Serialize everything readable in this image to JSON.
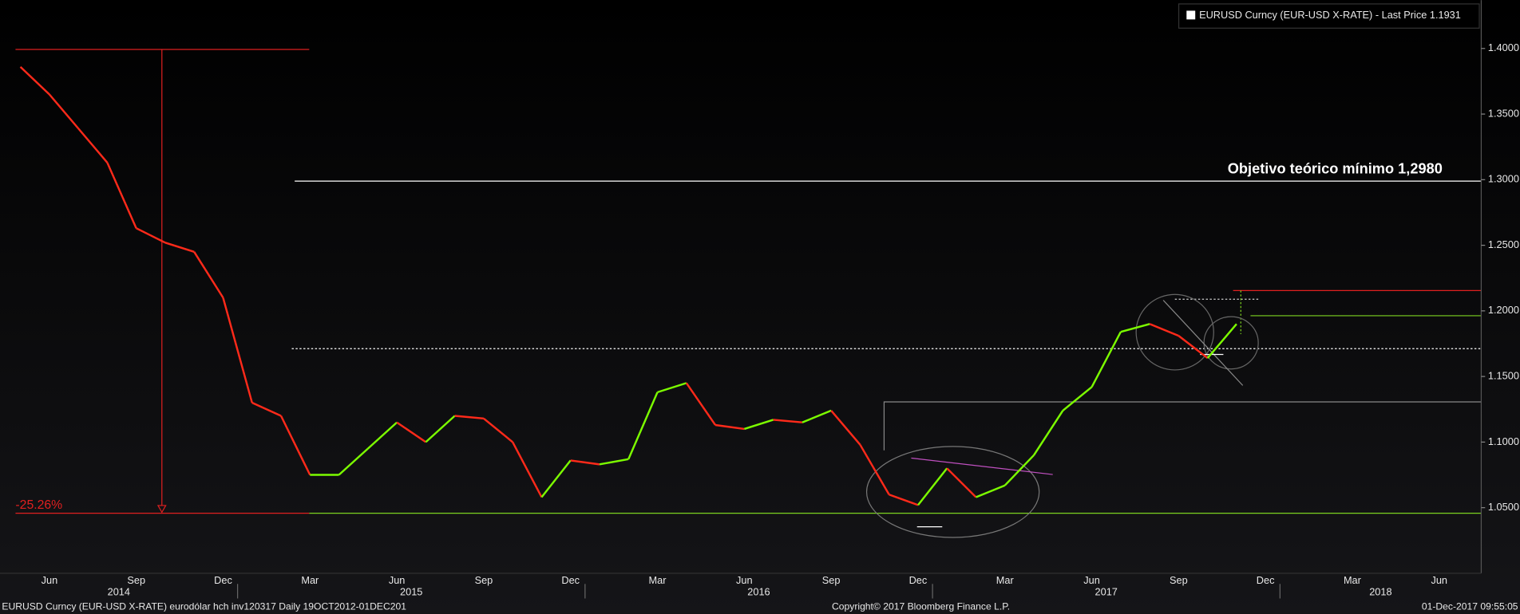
{
  "chart_data": {
    "type": "line",
    "title": "EURUSD Curncy (EUR-USD X-RATE) - Last Price 1.1931",
    "annotations": {
      "target": "Objetivo teórico mínimo 1,2980",
      "drop": "-25.26%"
    },
    "footer": {
      "left": "EURUSD Curncy (EUR-USD X-RATE) eurodólar hch inv120317  Daily 19OCT2012-01DEC201",
      "center": "Copyright© 2017 Bloomberg Finance L.P.",
      "right": "01-Dec-2017 09:55:05"
    },
    "x": [
      "2014-05",
      "2014-06",
      "2014-07",
      "2014-08",
      "2014-09",
      "2014-10",
      "2014-11",
      "2014-12",
      "2015-01",
      "2015-02",
      "2015-03",
      "2015-04",
      "2015-05",
      "2015-06",
      "2015-07",
      "2015-08",
      "2015-09",
      "2015-10",
      "2015-11",
      "2015-12",
      "2016-01",
      "2016-02",
      "2016-03",
      "2016-04",
      "2016-05",
      "2016-06",
      "2016-07",
      "2016-08",
      "2016-09",
      "2016-10",
      "2016-11",
      "2016-12",
      "2017-01",
      "2017-02",
      "2017-03",
      "2017-04",
      "2017-05",
      "2017-06",
      "2017-07",
      "2017-08",
      "2017-09",
      "2017-10",
      "2017-11"
    ],
    "series": [
      {
        "name": "EURUSD Curncy",
        "up_color": "#7cfc00",
        "down_color": "#ff2a1a",
        "values": [
          1.386,
          1.365,
          1.339,
          1.313,
          1.263,
          1.252,
          1.245,
          1.21,
          1.13,
          1.12,
          1.075,
          1.075,
          1.095,
          1.115,
          1.1,
          1.12,
          1.118,
          1.1,
          1.058,
          1.086,
          1.083,
          1.087,
          1.138,
          1.145,
          1.113,
          1.11,
          1.117,
          1.115,
          1.124,
          1.098,
          1.06,
          1.052,
          1.08,
          1.058,
          1.067,
          1.09,
          1.124,
          1.142,
          1.184,
          1.19,
          1.181,
          1.164,
          1.19
        ]
      }
    ],
    "x_tick_labels": [
      "Jun",
      "Sep",
      "Dec",
      "Mar",
      "Jun",
      "Sep",
      "Dec",
      "Mar",
      "Jun",
      "Sep",
      "Dec",
      "Mar",
      "Jun",
      "Sep",
      "Dec",
      "Mar",
      "Jun"
    ],
    "x_year_labels": [
      "2014",
      "2015",
      "2016",
      "2017",
      "2018"
    ],
    "ylim": [
      1.0,
      1.4369
    ],
    "yticks": [
      {
        "value": 1.05,
        "label": "1.0500"
      },
      {
        "value": 1.1,
        "label": "1.1000"
      },
      {
        "value": 1.15,
        "label": "1.1500"
      },
      {
        "value": 1.2,
        "label": "1.2000"
      },
      {
        "value": 1.25,
        "label": "1.2500"
      },
      {
        "value": 1.3,
        "label": "1.3000"
      },
      {
        "value": 1.35,
        "label": "1.3500"
      },
      {
        "value": 1.4,
        "label": "1.4000"
      }
    ]
  }
}
